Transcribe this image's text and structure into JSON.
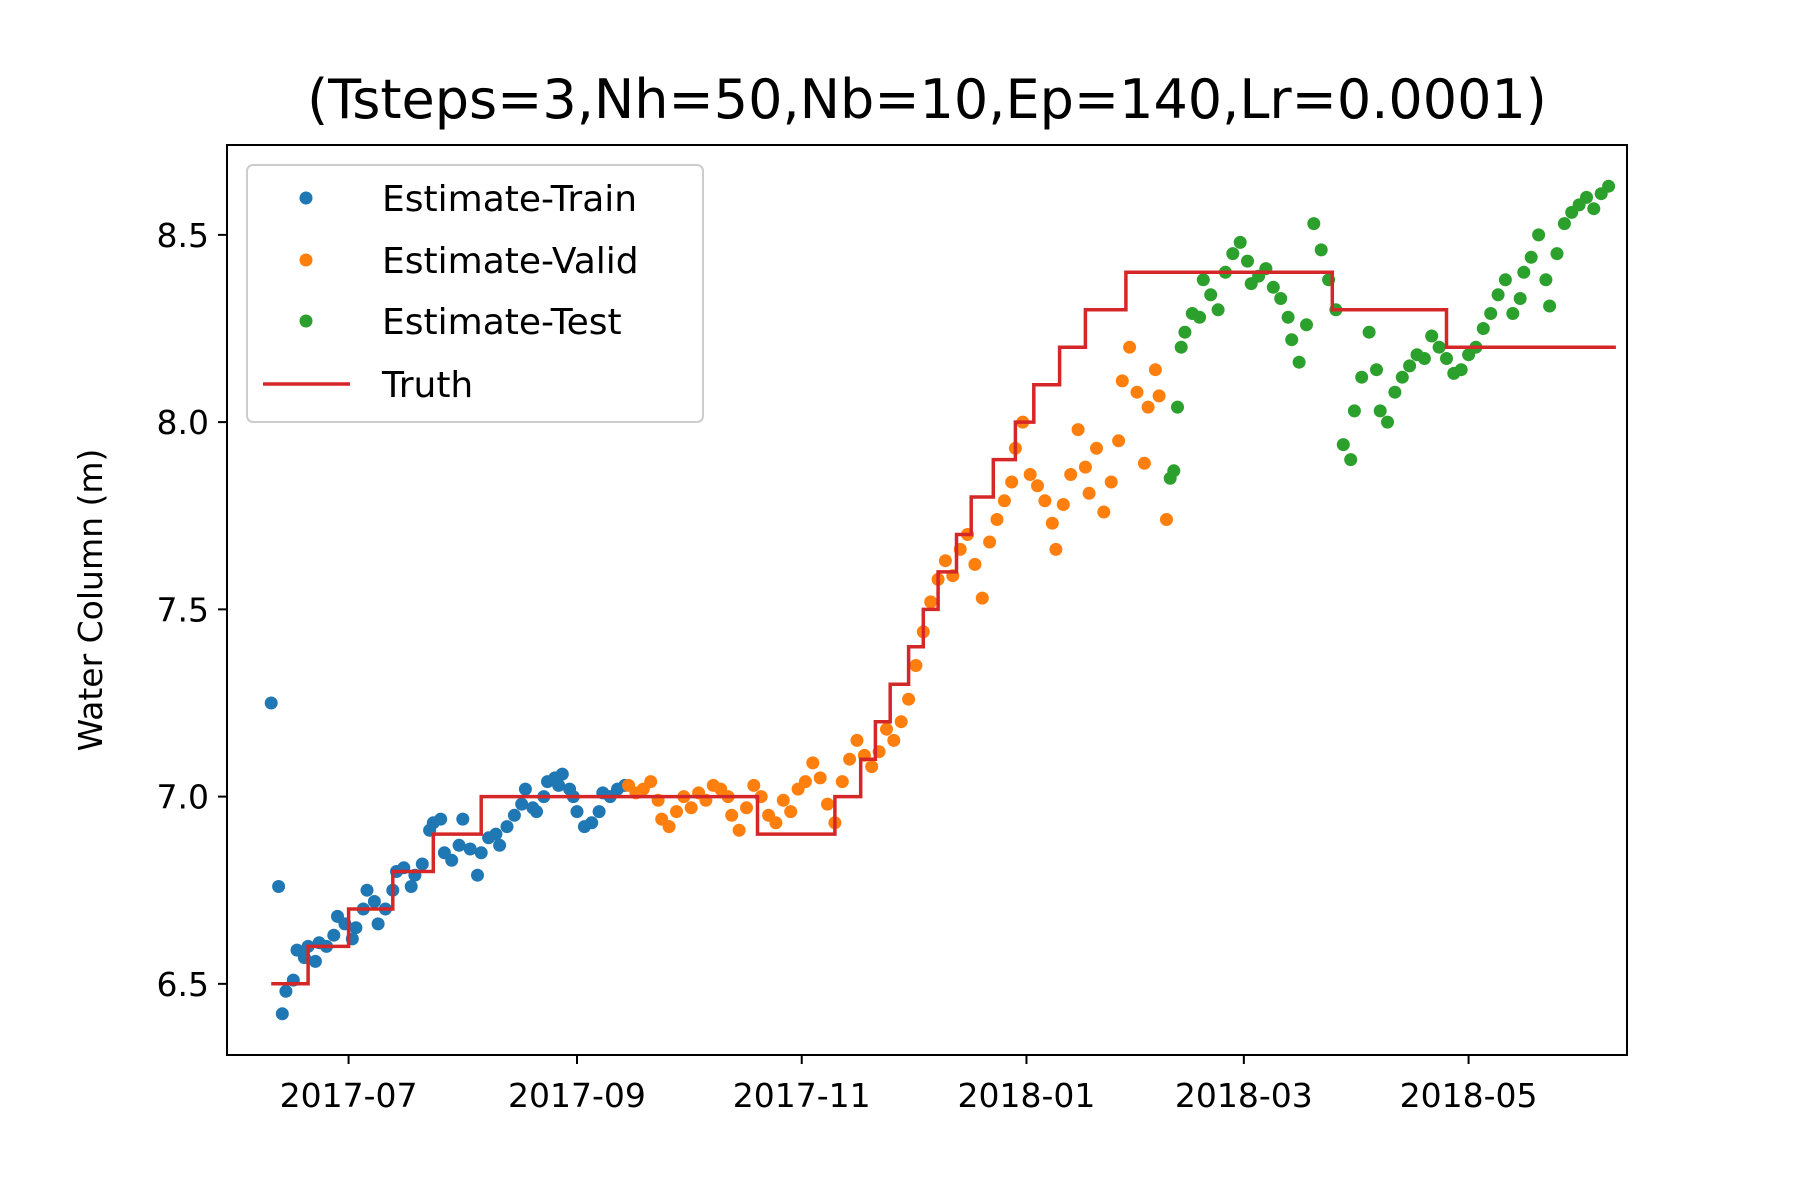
{
  "chart_data": {
    "type": "scatter",
    "title": "(Tsteps=3,Nh=50,Nb=10,Ep=140,Lr=0.0001)",
    "xlabel": "",
    "ylabel": "Water Column (m)",
    "x_type": "date",
    "xlim": [
      "2017-05-29",
      "2018-06-13"
    ],
    "ylim": [
      6.31,
      8.74
    ],
    "x_ticks": [
      "2017-07-01",
      "2017-09-01",
      "2017-11-01",
      "2018-01-01",
      "2018-03-01",
      "2018-05-01"
    ],
    "x_tick_labels": [
      "2017-07",
      "2017-09",
      "2017-11",
      "2018-01",
      "2018-03",
      "2018-05"
    ],
    "y_ticks": [
      6.5,
      7.0,
      7.5,
      8.0,
      8.5
    ],
    "y_tick_labels": [
      "6.5",
      "7.0",
      "7.5",
      "8.0",
      "8.5"
    ],
    "grid": false,
    "legend_position": "top-left",
    "series": [
      {
        "name": "Estimate-Train",
        "kind": "scatter",
        "color": "#1f77b4",
        "points": [
          [
            "2017-06-10",
            7.25
          ],
          [
            "2017-06-12",
            6.76
          ],
          [
            "2017-06-13",
            6.42
          ],
          [
            "2017-06-14",
            6.48
          ],
          [
            "2017-06-16",
            6.51
          ],
          [
            "2017-06-17",
            6.59
          ],
          [
            "2017-06-19",
            6.57
          ],
          [
            "2017-06-20",
            6.6
          ],
          [
            "2017-06-22",
            6.56
          ],
          [
            "2017-06-23",
            6.61
          ],
          [
            "2017-06-25",
            6.6
          ],
          [
            "2017-06-27",
            6.63
          ],
          [
            "2017-06-28",
            6.68
          ],
          [
            "2017-06-30",
            6.66
          ],
          [
            "2017-07-02",
            6.62
          ],
          [
            "2017-07-03",
            6.65
          ],
          [
            "2017-07-05",
            6.7
          ],
          [
            "2017-07-06",
            6.75
          ],
          [
            "2017-07-08",
            6.72
          ],
          [
            "2017-07-09",
            6.66
          ],
          [
            "2017-07-11",
            6.7
          ],
          [
            "2017-07-13",
            6.75
          ],
          [
            "2017-07-14",
            6.8
          ],
          [
            "2017-07-16",
            6.81
          ],
          [
            "2017-07-18",
            6.76
          ],
          [
            "2017-07-19",
            6.79
          ],
          [
            "2017-07-21",
            6.82
          ],
          [
            "2017-07-23",
            6.91
          ],
          [
            "2017-07-24",
            6.93
          ],
          [
            "2017-07-26",
            6.94
          ],
          [
            "2017-07-27",
            6.85
          ],
          [
            "2017-07-29",
            6.83
          ],
          [
            "2017-07-31",
            6.87
          ],
          [
            "2017-08-01",
            6.94
          ],
          [
            "2017-08-03",
            6.86
          ],
          [
            "2017-08-05",
            6.79
          ],
          [
            "2017-08-06",
            6.85
          ],
          [
            "2017-08-08",
            6.89
          ],
          [
            "2017-08-10",
            6.9
          ],
          [
            "2017-08-11",
            6.87
          ],
          [
            "2017-08-13",
            6.92
          ],
          [
            "2017-08-15",
            6.95
          ],
          [
            "2017-08-17",
            6.98
          ],
          [
            "2017-08-18",
            7.02
          ],
          [
            "2017-08-20",
            6.97
          ],
          [
            "2017-08-21",
            6.96
          ],
          [
            "2017-08-23",
            7.0
          ],
          [
            "2017-08-24",
            7.04
          ],
          [
            "2017-08-26",
            7.05
          ],
          [
            "2017-08-27",
            7.03
          ],
          [
            "2017-08-28",
            7.06
          ],
          [
            "2017-08-30",
            7.02
          ],
          [
            "2017-08-31",
            7.0
          ],
          [
            "2017-09-01",
            6.96
          ],
          [
            "2017-09-03",
            6.92
          ],
          [
            "2017-09-05",
            6.93
          ],
          [
            "2017-09-07",
            6.96
          ],
          [
            "2017-09-08",
            7.01
          ],
          [
            "2017-09-10",
            7.0
          ],
          [
            "2017-09-12",
            7.02
          ],
          [
            "2017-09-14",
            7.03
          ]
        ]
      },
      {
        "name": "Estimate-Valid",
        "kind": "scatter",
        "color": "#ff7f0e",
        "points": [
          [
            "2017-09-15",
            7.03
          ],
          [
            "2017-09-17",
            7.01
          ],
          [
            "2017-09-19",
            7.02
          ],
          [
            "2017-09-21",
            7.04
          ],
          [
            "2017-09-23",
            6.99
          ],
          [
            "2017-09-24",
            6.94
          ],
          [
            "2017-09-26",
            6.92
          ],
          [
            "2017-09-28",
            6.96
          ],
          [
            "2017-09-30",
            7.0
          ],
          [
            "2017-10-02",
            6.97
          ],
          [
            "2017-10-04",
            7.01
          ],
          [
            "2017-10-06",
            6.99
          ],
          [
            "2017-10-08",
            7.03
          ],
          [
            "2017-10-10",
            7.02
          ],
          [
            "2017-10-12",
            7.0
          ],
          [
            "2017-10-13",
            6.95
          ],
          [
            "2017-10-15",
            6.91
          ],
          [
            "2017-10-17",
            6.97
          ],
          [
            "2017-10-19",
            7.03
          ],
          [
            "2017-10-21",
            7.0
          ],
          [
            "2017-10-23",
            6.95
          ],
          [
            "2017-10-25",
            6.93
          ],
          [
            "2017-10-27",
            6.99
          ],
          [
            "2017-10-29",
            6.96
          ],
          [
            "2017-10-31",
            7.02
          ],
          [
            "2017-11-02",
            7.04
          ],
          [
            "2017-11-04",
            7.09
          ],
          [
            "2017-11-06",
            7.05
          ],
          [
            "2017-11-08",
            6.98
          ],
          [
            "2017-11-10",
            6.93
          ],
          [
            "2017-11-12",
            7.04
          ],
          [
            "2017-11-14",
            7.1
          ],
          [
            "2017-11-16",
            7.15
          ],
          [
            "2017-11-18",
            7.11
          ],
          [
            "2017-11-20",
            7.08
          ],
          [
            "2017-11-22",
            7.12
          ],
          [
            "2017-11-24",
            7.18
          ],
          [
            "2017-11-26",
            7.15
          ],
          [
            "2017-11-28",
            7.2
          ],
          [
            "2017-11-30",
            7.26
          ],
          [
            "2017-12-02",
            7.35
          ],
          [
            "2017-12-04",
            7.44
          ],
          [
            "2017-12-06",
            7.52
          ],
          [
            "2017-12-08",
            7.58
          ],
          [
            "2017-12-10",
            7.63
          ],
          [
            "2017-12-12",
            7.59
          ],
          [
            "2017-12-14",
            7.66
          ],
          [
            "2017-12-16",
            7.7
          ],
          [
            "2017-12-18",
            7.62
          ],
          [
            "2017-12-20",
            7.53
          ],
          [
            "2017-12-22",
            7.68
          ],
          [
            "2017-12-24",
            7.74
          ],
          [
            "2017-12-26",
            7.79
          ],
          [
            "2017-12-28",
            7.84
          ],
          [
            "2017-12-29",
            7.93
          ],
          [
            "2017-12-31",
            8.0
          ],
          [
            "2018-01-02",
            7.86
          ],
          [
            "2018-01-04",
            7.83
          ],
          [
            "2018-01-06",
            7.79
          ],
          [
            "2018-01-08",
            7.73
          ],
          [
            "2018-01-09",
            7.66
          ],
          [
            "2018-01-11",
            7.78
          ],
          [
            "2018-01-13",
            7.86
          ],
          [
            "2018-01-15",
            7.98
          ],
          [
            "2018-01-17",
            7.88
          ],
          [
            "2018-01-18",
            7.81
          ],
          [
            "2018-01-20",
            7.93
          ],
          [
            "2018-01-22",
            7.76
          ],
          [
            "2018-01-24",
            7.84
          ],
          [
            "2018-01-26",
            7.95
          ],
          [
            "2018-01-27",
            8.11
          ],
          [
            "2018-01-29",
            8.2
          ],
          [
            "2018-01-31",
            8.08
          ],
          [
            "2018-02-02",
            7.89
          ],
          [
            "2018-02-03",
            8.04
          ],
          [
            "2018-02-05",
            8.14
          ],
          [
            "2018-02-06",
            8.07
          ],
          [
            "2018-02-08",
            7.74
          ]
        ]
      },
      {
        "name": "Estimate-Test",
        "kind": "scatter",
        "color": "#2ca02c",
        "points": [
          [
            "2018-02-09",
            7.85
          ],
          [
            "2018-02-10",
            7.87
          ],
          [
            "2018-02-11",
            8.04
          ],
          [
            "2018-02-12",
            8.2
          ],
          [
            "2018-02-13",
            8.24
          ],
          [
            "2018-02-15",
            8.29
          ],
          [
            "2018-02-17",
            8.28
          ],
          [
            "2018-02-18",
            8.38
          ],
          [
            "2018-02-20",
            8.34
          ],
          [
            "2018-02-22",
            8.3
          ],
          [
            "2018-02-24",
            8.4
          ],
          [
            "2018-02-26",
            8.45
          ],
          [
            "2018-02-28",
            8.48
          ],
          [
            "2018-03-02",
            8.43
          ],
          [
            "2018-03-03",
            8.37
          ],
          [
            "2018-03-05",
            8.39
          ],
          [
            "2018-03-07",
            8.41
          ],
          [
            "2018-03-09",
            8.36
          ],
          [
            "2018-03-11",
            8.33
          ],
          [
            "2018-03-13",
            8.28
          ],
          [
            "2018-03-14",
            8.22
          ],
          [
            "2018-03-16",
            8.16
          ],
          [
            "2018-03-18",
            8.26
          ],
          [
            "2018-03-20",
            8.53
          ],
          [
            "2018-03-22",
            8.46
          ],
          [
            "2018-03-24",
            8.38
          ],
          [
            "2018-03-26",
            8.3
          ],
          [
            "2018-03-28",
            7.94
          ],
          [
            "2018-03-30",
            7.9
          ],
          [
            "2018-03-31",
            8.03
          ],
          [
            "2018-04-02",
            8.12
          ],
          [
            "2018-04-04",
            8.24
          ],
          [
            "2018-04-06",
            8.14
          ],
          [
            "2018-04-07",
            8.03
          ],
          [
            "2018-04-09",
            8.0
          ],
          [
            "2018-04-11",
            8.08
          ],
          [
            "2018-04-13",
            8.12
          ],
          [
            "2018-04-15",
            8.15
          ],
          [
            "2018-04-17",
            8.18
          ],
          [
            "2018-04-19",
            8.17
          ],
          [
            "2018-04-21",
            8.23
          ],
          [
            "2018-04-23",
            8.2
          ],
          [
            "2018-04-25",
            8.17
          ],
          [
            "2018-04-27",
            8.13
          ],
          [
            "2018-04-29",
            8.14
          ],
          [
            "2018-05-01",
            8.18
          ],
          [
            "2018-05-03",
            8.2
          ],
          [
            "2018-05-05",
            8.25
          ],
          [
            "2018-05-07",
            8.29
          ],
          [
            "2018-05-09",
            8.34
          ],
          [
            "2018-05-11",
            8.38
          ],
          [
            "2018-05-13",
            8.29
          ],
          [
            "2018-05-15",
            8.33
          ],
          [
            "2018-05-16",
            8.4
          ],
          [
            "2018-05-18",
            8.44
          ],
          [
            "2018-05-20",
            8.5
          ],
          [
            "2018-05-22",
            8.38
          ],
          [
            "2018-05-23",
            8.31
          ],
          [
            "2018-05-25",
            8.45
          ],
          [
            "2018-05-27",
            8.53
          ],
          [
            "2018-05-29",
            8.56
          ],
          [
            "2018-05-31",
            8.58
          ],
          [
            "2018-06-02",
            8.6
          ],
          [
            "2018-06-04",
            8.57
          ],
          [
            "2018-06-06",
            8.61
          ],
          [
            "2018-06-08",
            8.63
          ]
        ]
      },
      {
        "name": "Truth",
        "kind": "step",
        "color": "#d62728",
        "points": [
          [
            "2017-06-10",
            6.5
          ],
          [
            "2017-06-20",
            6.5
          ],
          [
            "2017-06-20",
            6.6
          ],
          [
            "2017-07-01",
            6.6
          ],
          [
            "2017-07-01",
            6.7
          ],
          [
            "2017-07-13",
            6.7
          ],
          [
            "2017-07-13",
            6.8
          ],
          [
            "2017-07-24",
            6.8
          ],
          [
            "2017-07-24",
            6.9
          ],
          [
            "2017-08-06",
            6.9
          ],
          [
            "2017-08-06",
            7.0
          ],
          [
            "2017-10-20",
            7.0
          ],
          [
            "2017-10-20",
            6.9
          ],
          [
            "2017-11-10",
            6.9
          ],
          [
            "2017-11-10",
            7.0
          ],
          [
            "2017-11-17",
            7.0
          ],
          [
            "2017-11-17",
            7.1
          ],
          [
            "2017-11-21",
            7.1
          ],
          [
            "2017-11-21",
            7.2
          ],
          [
            "2017-11-25",
            7.2
          ],
          [
            "2017-11-25",
            7.3
          ],
          [
            "2017-11-30",
            7.3
          ],
          [
            "2017-11-30",
            7.4
          ],
          [
            "2017-12-04",
            7.4
          ],
          [
            "2017-12-04",
            7.5
          ],
          [
            "2017-12-08",
            7.5
          ],
          [
            "2017-12-08",
            7.6
          ],
          [
            "2017-12-13",
            7.6
          ],
          [
            "2017-12-13",
            7.7
          ],
          [
            "2017-12-17",
            7.7
          ],
          [
            "2017-12-17",
            7.8
          ],
          [
            "2017-12-23",
            7.8
          ],
          [
            "2017-12-23",
            7.9
          ],
          [
            "2017-12-29",
            7.9
          ],
          [
            "2017-12-29",
            8.0
          ],
          [
            "2018-01-03",
            8.0
          ],
          [
            "2018-01-03",
            8.1
          ],
          [
            "2018-01-10",
            8.1
          ],
          [
            "2018-01-10",
            8.2
          ],
          [
            "2018-01-17",
            8.2
          ],
          [
            "2018-01-17",
            8.3
          ],
          [
            "2018-01-28",
            8.3
          ],
          [
            "2018-01-28",
            8.4
          ],
          [
            "2018-03-25",
            8.4
          ],
          [
            "2018-03-25",
            8.3
          ],
          [
            "2018-04-25",
            8.3
          ],
          [
            "2018-04-25",
            8.2
          ],
          [
            "2018-06-10",
            8.2
          ]
        ]
      }
    ]
  }
}
